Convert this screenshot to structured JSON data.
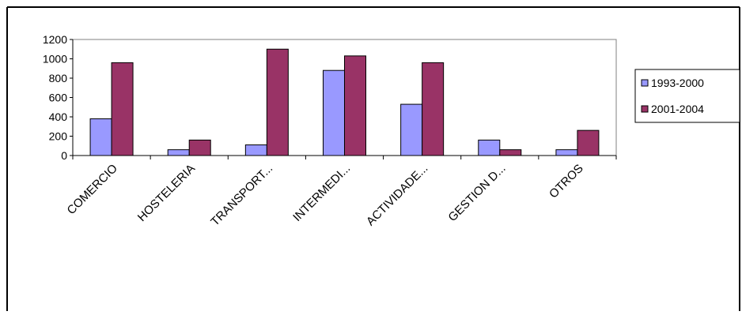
{
  "chart_data": {
    "type": "bar",
    "categories": [
      "COMERCIO",
      "HOSTELERIA",
      "TRANSPORT...",
      "INTERMEDI...",
      "ACTIVIDADE...",
      "GESTION D...",
      "OTROS"
    ],
    "series": [
      {
        "name": "1993-2000",
        "color": "#9999ff",
        "values": [
          380,
          60,
          110,
          880,
          530,
          160,
          60
        ]
      },
      {
        "name": "2001-2004",
        "color": "#993366",
        "values": [
          960,
          160,
          1100,
          1030,
          960,
          60,
          260
        ]
      }
    ],
    "ylim": [
      0,
      1200
    ],
    "yticks": [
      0,
      200,
      400,
      600,
      800,
      1000,
      1200
    ],
    "grid": false,
    "legend_position": "right"
  }
}
